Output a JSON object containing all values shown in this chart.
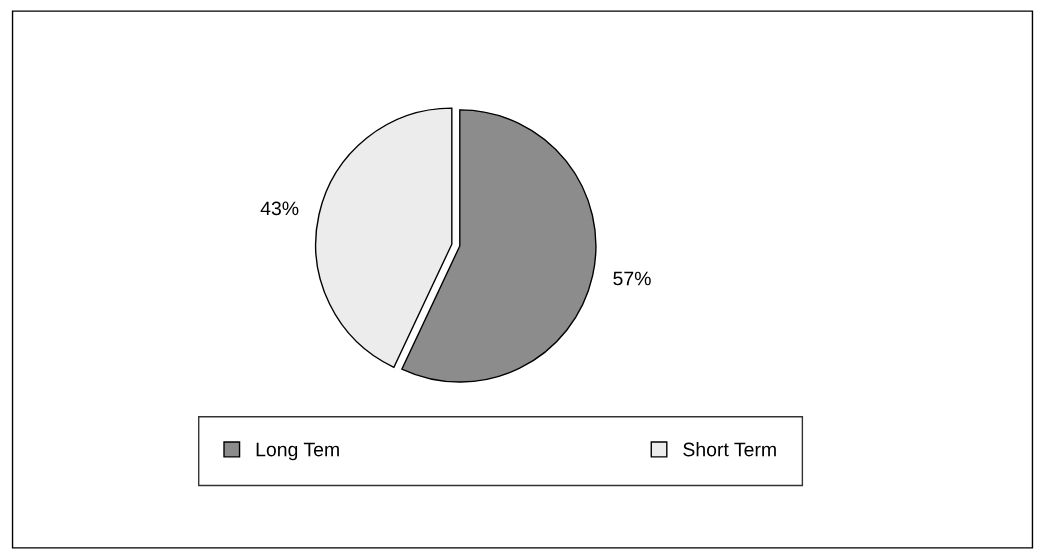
{
  "chart_data": {
    "type": "pie",
    "categories": [
      "Long Tem",
      "Short Term"
    ],
    "values": [
      57,
      43
    ],
    "colors": [
      "#8c8c8c",
      "#ececec"
    ],
    "value_labels": [
      "57%",
      "43%"
    ],
    "legend": "bottom"
  }
}
